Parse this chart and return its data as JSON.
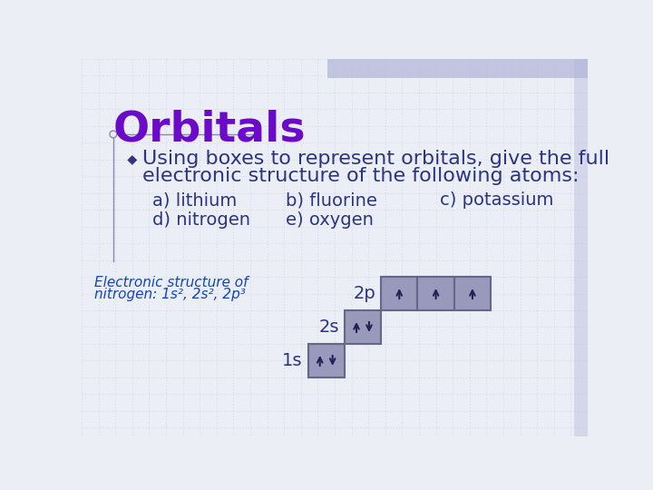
{
  "title": "Orbitals",
  "title_color": "#6B0AC9",
  "title_fontsize": 34,
  "bg_color": "#ECEEF5",
  "bullet_text_line1": "Using boxes to represent orbitals, give the full",
  "bullet_text_line2": "electronic structure of the following atoms:",
  "body_color": "#2B3580",
  "body_fontsize": 16,
  "item1a": "a) lithium",
  "item1b": "b) fluorine",
  "item1c": "c) potassium",
  "item2a": "d) nitrogen",
  "item2b": "e) oxygen",
  "items_fontsize": 14,
  "label_color": "#1144BB",
  "label_fontsize": 11,
  "label_line1": "Electronic structure of",
  "label_line2": "nitrogen: 1s², 2s², 2p³",
  "box_color": "#9999BB",
  "box_edge_color": "#666688",
  "arrow_color": "#222255",
  "orbital_label_fontsize": 14,
  "orbital_label_color": "#2B3580",
  "grid_color": "#C5CAE0",
  "header_bar_color": "#B0B4D8",
  "accent_line_color": "#8888AA",
  "bullet_color": "#333380"
}
